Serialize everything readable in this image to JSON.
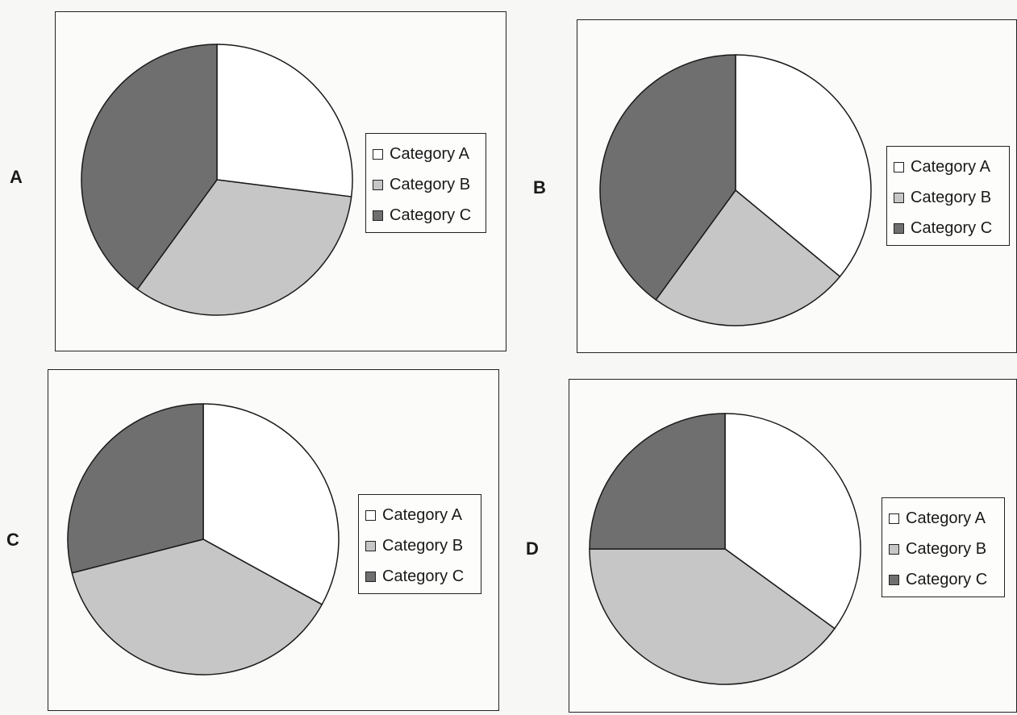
{
  "chart_data": [
    {
      "type": "pie",
      "panel_label": "A",
      "categories": [
        "Category A",
        "Category B",
        "Category C"
      ],
      "values": [
        27,
        33,
        40
      ],
      "colors": [
        "#ffffff",
        "#c6c6c6",
        "#6f6f6f"
      ],
      "start_angle_deg": 0,
      "direction": "clockwise",
      "legend_position": "right"
    },
    {
      "type": "pie",
      "panel_label": "B",
      "categories": [
        "Category A",
        "Category B",
        "Category C"
      ],
      "values": [
        36,
        24,
        40
      ],
      "colors": [
        "#ffffff",
        "#c6c6c6",
        "#6f6f6f"
      ],
      "start_angle_deg": 0,
      "direction": "clockwise",
      "legend_position": "right"
    },
    {
      "type": "pie",
      "panel_label": "C",
      "categories": [
        "Category A",
        "Category B",
        "Category C"
      ],
      "values": [
        33,
        38,
        29
      ],
      "colors": [
        "#ffffff",
        "#c6c6c6",
        "#6f6f6f"
      ],
      "start_angle_deg": 0,
      "direction": "clockwise",
      "legend_position": "right"
    },
    {
      "type": "pie",
      "panel_label": "D",
      "categories": [
        "Category A",
        "Category B",
        "Category C"
      ],
      "values": [
        35,
        40,
        25
      ],
      "colors": [
        "#ffffff",
        "#c6c6c6",
        "#6f6f6f"
      ],
      "start_angle_deg": 0,
      "direction": "clockwise",
      "legend_position": "right"
    }
  ]
}
